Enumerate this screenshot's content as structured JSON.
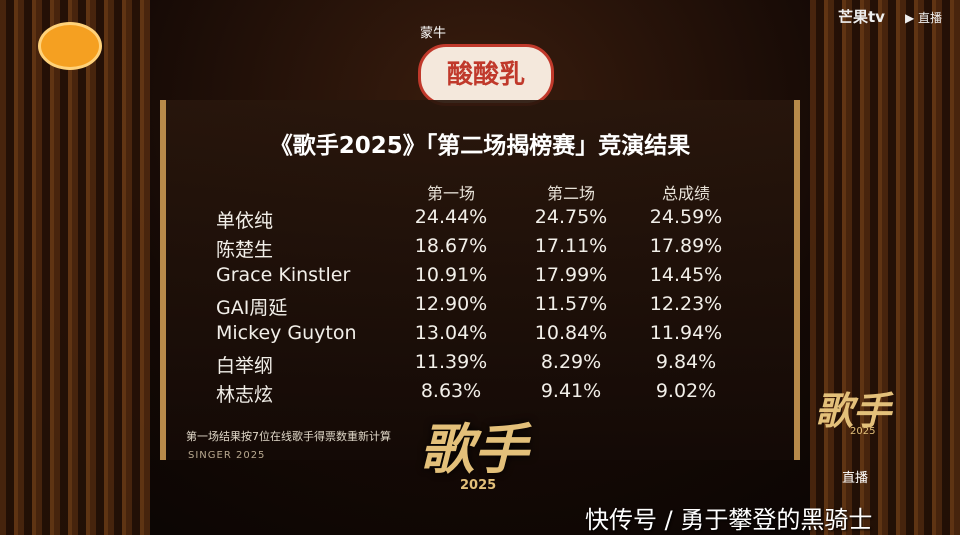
{
  "broadcast": {
    "sponsor_brand": "蒙牛",
    "sponsor_product": "酸酸乳",
    "channel": "芒果tv",
    "live_top": "直播",
    "live_corner": "直播",
    "corner_logo": "歌手",
    "corner_logo_year": "2025"
  },
  "panel": {
    "title": "《歌手2025》「第二场揭榜赛」竞演结果",
    "table": {
      "header": [
        "第一场",
        "第二场",
        "总成绩"
      ],
      "rows": [
        [
          "单依纯",
          "24.44%",
          "24.75%",
          "24.59%"
        ],
        [
          "陈楚生",
          "18.67%",
          "17.11%",
          "17.89%"
        ],
        [
          "Grace Kinstler",
          "10.91%",
          "17.99%",
          "14.45%"
        ],
        [
          "GAI周延",
          "12.90%",
          "11.57%",
          "12.23%"
        ],
        [
          "Mickey Guyton",
          "13.04%",
          "10.84%",
          "11.94%"
        ],
        [
          "白举纲",
          "11.39%",
          "8.29%",
          "9.84%"
        ],
        [
          "林志炫",
          "8.63%",
          "9.41%",
          "9.02%"
        ]
      ]
    },
    "footnote": "第一场结果按7位在线歌手得票数重新计算",
    "tagline": "SINGER 2025",
    "logo": "歌手",
    "logo_year": "2025"
  },
  "watermark": "快传号 / 勇于攀登的黑骑士"
}
